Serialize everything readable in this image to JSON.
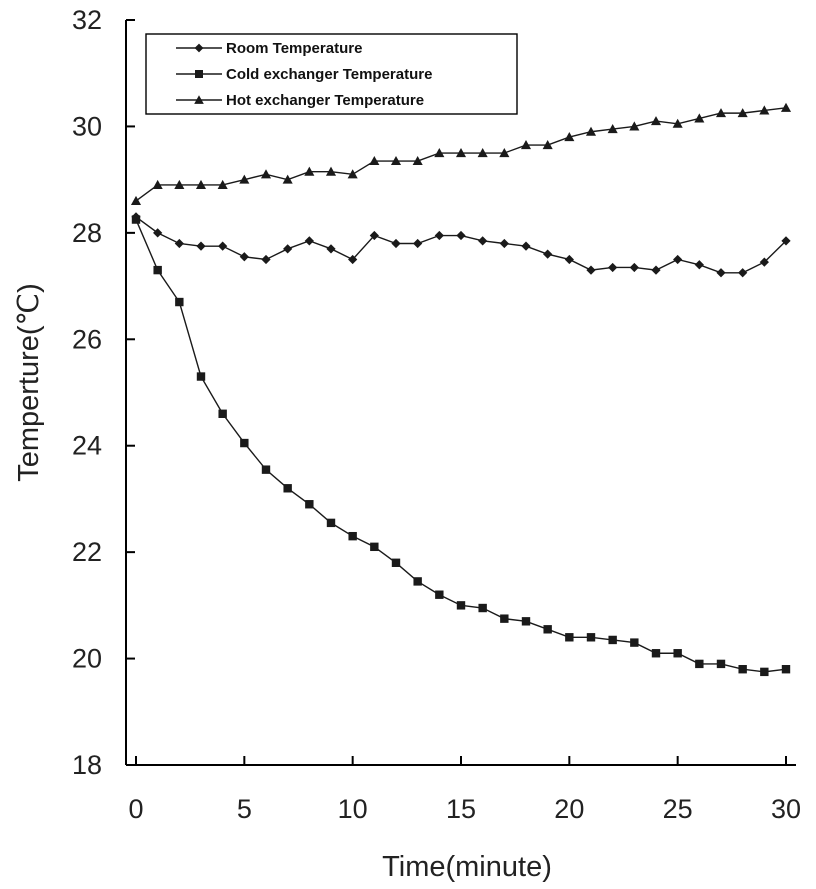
{
  "chart_data": {
    "type": "line",
    "title": "",
    "xlabel": "Time(minute)",
    "ylabel": "Temperture(℃)",
    "xlim": [
      0,
      30
    ],
    "ylim": [
      18,
      32
    ],
    "x_ticks": [
      "0",
      "5",
      "10",
      "15",
      "20",
      "25",
      "30"
    ],
    "y_ticks": [
      "18",
      "20",
      "22",
      "24",
      "26",
      "28",
      "30",
      "32"
    ],
    "grid": false,
    "legend_position": "top-left",
    "x": [
      0,
      1,
      2,
      3,
      4,
      5,
      6,
      7,
      8,
      9,
      10,
      11,
      12,
      13,
      14,
      15,
      16,
      17,
      18,
      19,
      20,
      21,
      22,
      23,
      24,
      25,
      26,
      27,
      28,
      29,
      30
    ],
    "series": [
      {
        "name": "Room Temperature",
        "marker": "diamond",
        "values": [
          28.3,
          28.0,
          27.8,
          27.75,
          27.75,
          27.55,
          27.5,
          27.7,
          27.85,
          27.7,
          27.5,
          27.95,
          27.8,
          27.8,
          27.95,
          27.95,
          27.85,
          27.8,
          27.75,
          27.6,
          27.5,
          27.3,
          27.35,
          27.35,
          27.3,
          27.5,
          27.4,
          27.25,
          27.25,
          27.45,
          27.85
        ]
      },
      {
        "name": "Cold exchanger Temperature",
        "marker": "square",
        "values": [
          28.25,
          27.3,
          26.7,
          25.3,
          24.6,
          24.05,
          23.55,
          23.2,
          22.9,
          22.55,
          22.3,
          22.1,
          21.8,
          21.45,
          21.2,
          21.0,
          20.95,
          20.75,
          20.7,
          20.55,
          20.4,
          20.4,
          20.35,
          20.3,
          20.1,
          20.1,
          19.9,
          19.9,
          19.8,
          19.75,
          19.8
        ]
      },
      {
        "name": "Hot exchanger Temperature",
        "marker": "triangle",
        "values": [
          28.6,
          28.9,
          28.9,
          28.9,
          28.9,
          29.0,
          29.1,
          29.0,
          29.15,
          29.15,
          29.1,
          29.35,
          29.35,
          29.35,
          29.5,
          29.5,
          29.5,
          29.5,
          29.65,
          29.65,
          29.8,
          29.9,
          29.95,
          30.0,
          30.1,
          30.05,
          30.15,
          30.25,
          30.25,
          30.3,
          30.35
        ]
      }
    ],
    "line_color": "#1a1a1a"
  }
}
